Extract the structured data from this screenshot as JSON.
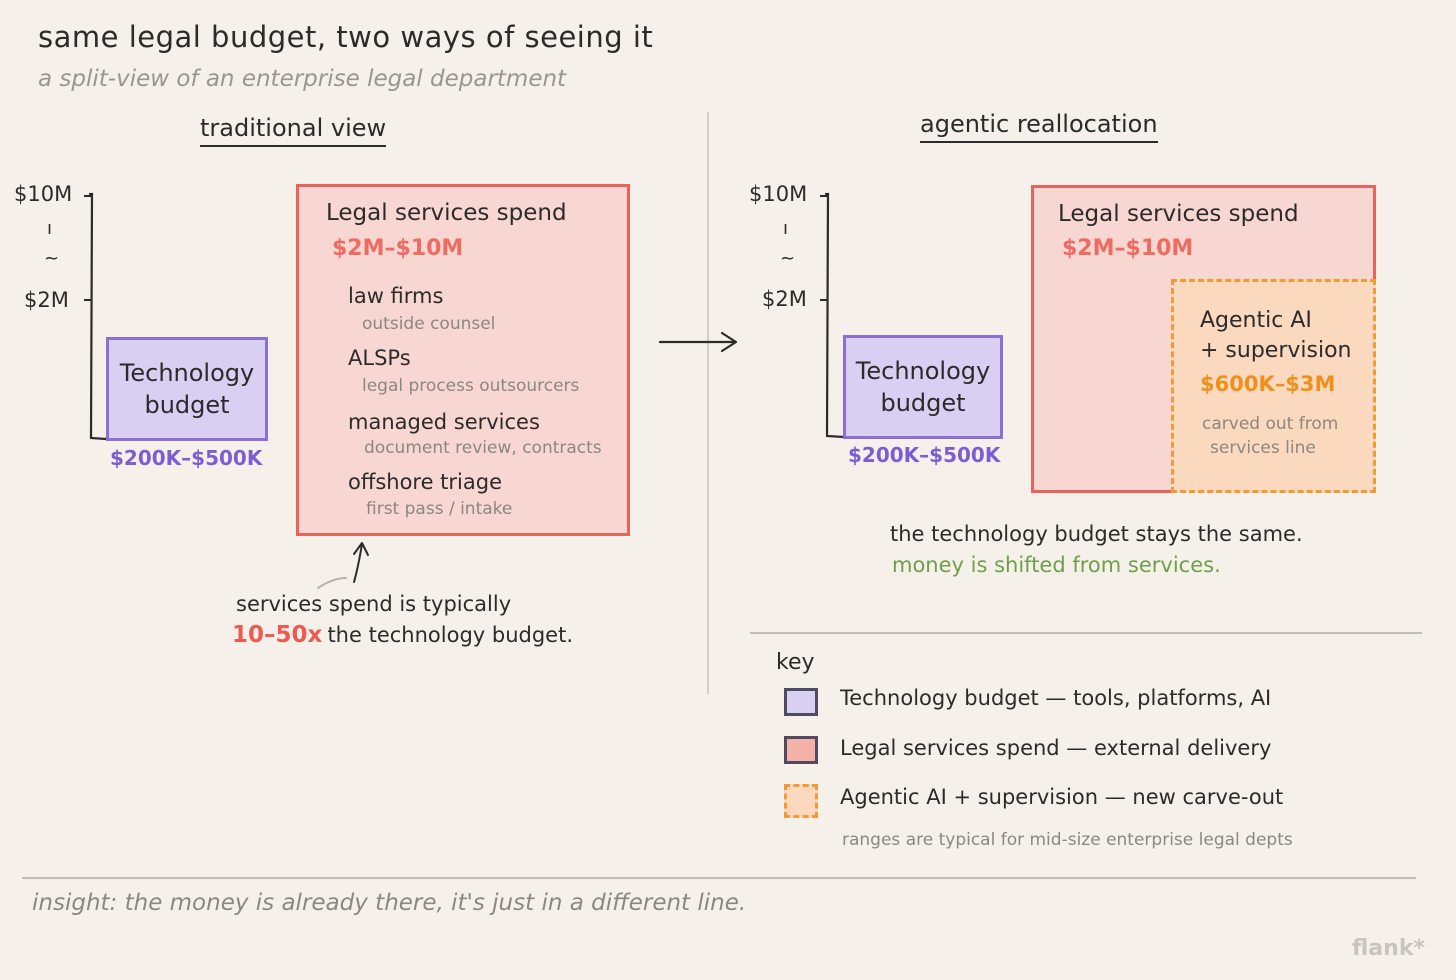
{
  "title": "same legal budget, two ways of seeing it",
  "subtitle": "a split-view of an enterprise legal department",
  "colors": {
    "technology": "#8b6fd6",
    "technology_fill": "#d8cff2",
    "legal_services": "#e9625c",
    "legal_fill": "#f8d6d2",
    "agentic": "#f19a36",
    "agentic_fill": "#fbd9bf",
    "highlight_red": "#ec5a52",
    "highlight_green": "#6f9f48"
  },
  "traditional": {
    "heading": "traditional view",
    "axis": {
      "top": "$10M",
      "break": "~",
      "bottom": "$2M"
    },
    "tech_box": {
      "line1": "Technology",
      "line2": "budget",
      "range": "$200K–$500K"
    },
    "legal_box": {
      "title": "Legal services spend",
      "range": "$2M–$10M",
      "items": [
        {
          "name": "law firms",
          "detail": "outside counsel"
        },
        {
          "name": "ALSPs",
          "detail": "legal process outsourcers"
        },
        {
          "name": "managed services",
          "detail": "document review, contracts"
        },
        {
          "name": "offshore triage",
          "detail": "first pass / intake"
        }
      ]
    },
    "annotation": {
      "line1": "services spend is typically",
      "emphasis": "10–50x",
      "line2_rest": "the technology budget."
    }
  },
  "agentic": {
    "heading": "agentic reallocation",
    "axis": {
      "top": "$10M",
      "break": "~",
      "bottom": "$2M"
    },
    "tech_box": {
      "line1": "Technology",
      "line2": "budget",
      "range": "$200K–$500K"
    },
    "legal_box": {
      "title": "Legal services spend",
      "range": "$2M–$10M"
    },
    "carve_out": {
      "line1": "Agentic AI",
      "line2": "+ supervision",
      "range": "$600K–$3M",
      "note1": "carved out from",
      "note2": "services line"
    },
    "summary": {
      "line1": "the technology budget stays the same.",
      "line2": "money is shifted from services."
    }
  },
  "key": {
    "label": "key",
    "items": [
      {
        "text": "Technology budget — tools, platforms, AI"
      },
      {
        "text": "Legal services spend — external delivery"
      },
      {
        "text": "Agentic AI + supervision — new carve-out"
      }
    ],
    "note": "ranges are typical for mid-size enterprise legal depts"
  },
  "insight": "insight: the money is already there, it's just in a different line.",
  "watermark": "flank*"
}
